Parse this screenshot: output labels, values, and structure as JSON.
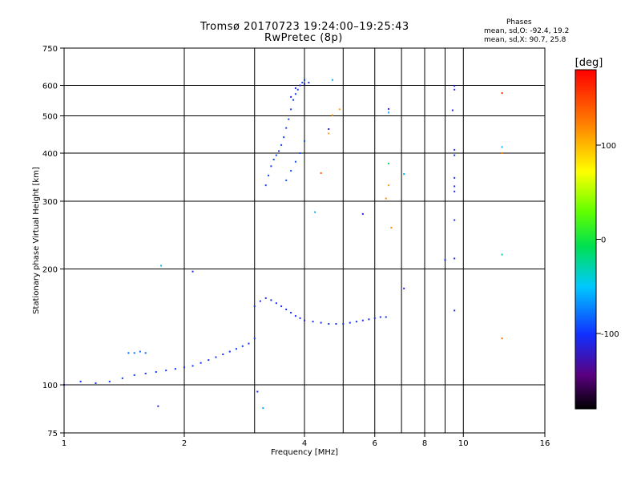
{
  "header": {
    "title_line1": "Tromsø 20170723 19:24:00–19:25:43",
    "title_line2": "RwPretec (8p)",
    "phases_label": "Phases",
    "phase_o": "mean, sd,O: -92.4, 19.2",
    "phase_x": "mean, sd,X:  90.7, 25.8"
  },
  "colorbar": {
    "label": "[deg]",
    "ticks": [
      {
        "value": 100,
        "label": "100"
      },
      {
        "value": 0,
        "label": "0"
      },
      {
        "value": -100,
        "label": "-100"
      }
    ],
    "range": [
      -180,
      180
    ]
  },
  "chart_data": {
    "type": "scatter",
    "title": "Tromsø 20170723 19:24:00–19:25:43",
    "subtitle": "RwPretec (8p)",
    "xlabel": "Frequency [MHz]",
    "ylabel": "Stationary phase Virtual Height [km]",
    "x_scale": "log",
    "y_scale": "log",
    "xlim": [
      1,
      16
    ],
    "ylim": [
      75,
      750
    ],
    "x_ticks": [
      {
        "value": 1,
        "label": "1"
      },
      {
        "value": 2,
        "label": "2"
      },
      {
        "value": 4,
        "label": "4"
      },
      {
        "value": 6,
        "label": "6"
      },
      {
        "value": 8,
        "label": "8"
      },
      {
        "value": 10,
        "label": "10"
      },
      {
        "value": 16,
        "label": "16"
      }
    ],
    "x_gridlines": [
      2,
      3,
      4,
      5,
      6,
      7,
      8,
      9,
      10
    ],
    "y_ticks": [
      {
        "value": 75,
        "label": "75"
      },
      {
        "value": 100,
        "label": "100"
      },
      {
        "value": 200,
        "label": "200"
      },
      {
        "value": 300,
        "label": "300"
      },
      {
        "value": 400,
        "label": "400"
      },
      {
        "value": 500,
        "label": "500"
      },
      {
        "value": 600,
        "label": "600"
      },
      {
        "value": 750,
        "label": "750"
      }
    ],
    "y_gridlines": [
      100,
      200,
      300,
      400,
      500,
      600
    ],
    "color_scale": "phase in degrees",
    "traces": [
      {
        "x": [
          1.0,
          1.1,
          1.2,
          1.3,
          1.4,
          1.5,
          1.6,
          1.7,
          1.8,
          1.9,
          2.0,
          2.1,
          2.2,
          2.3,
          2.4,
          2.5,
          2.6,
          2.7,
          2.8,
          2.9,
          3.0
        ],
        "y": [
          100,
          102,
          101,
          102,
          104,
          106,
          107,
          108,
          109,
          110,
          111,
          112,
          114,
          116,
          118,
          120,
          122,
          124,
          126,
          128,
          132
        ],
        "phase": -100
      },
      {
        "x": [
          1.45,
          1.5,
          1.55,
          1.6
        ],
        "y": [
          121,
          121,
          122,
          121
        ],
        "phase": -80
      },
      {
        "x": [
          3.0,
          3.1,
          3.2,
          3.3,
          3.4,
          3.5,
          3.6,
          3.7,
          3.8,
          3.9,
          4.0,
          4.2,
          4.4,
          4.6,
          4.8,
          5.0,
          5.2,
          5.4,
          5.6,
          5.8,
          6.0,
          6.2,
          6.4
        ],
        "y": [
          160,
          165,
          168,
          166,
          163,
          160,
          157,
          154,
          151,
          149,
          147,
          146,
          145,
          144,
          144,
          144,
          145,
          146,
          147,
          148,
          149,
          150,
          150
        ],
        "phase": -105
      },
      {
        "x": [
          3.2,
          3.25,
          3.3,
          3.35,
          3.4,
          3.45,
          3.5,
          3.55,
          3.6,
          3.65,
          3.7,
          3.75,
          3.8,
          3.85,
          3.9,
          3.95,
          4.0
        ],
        "y": [
          330,
          350,
          370,
          385,
          395,
          405,
          420,
          440,
          465,
          490,
          520,
          550,
          570,
          585,
          600,
          610,
          620
        ],
        "phase": -95
      },
      {
        "x": [
          3.6,
          3.7,
          3.8,
          3.9,
          4.0
        ],
        "y": [
          340,
          360,
          380,
          400,
          430
        ],
        "phase": -90
      },
      {
        "x": [
          3.7,
          3.8,
          3.9,
          4.0,
          4.1
        ],
        "y": [
          560,
          590,
          600,
          605,
          610
        ],
        "phase": -110
      }
    ],
    "scatter_points": [
      {
        "x": 1.75,
        "y": 204,
        "phase": -60
      },
      {
        "x": 2.1,
        "y": 197,
        "phase": -110
      },
      {
        "x": 1.72,
        "y": 88,
        "phase": -110
      },
      {
        "x": 3.05,
        "y": 96,
        "phase": -110
      },
      {
        "x": 3.15,
        "y": 87,
        "phase": -60
      },
      {
        "x": 4.25,
        "y": 281,
        "phase": -60
      },
      {
        "x": 4.4,
        "y": 355,
        "phase": 140
      },
      {
        "x": 4.7,
        "y": 620,
        "phase": -60
      },
      {
        "x": 4.6,
        "y": 462,
        "phase": -120
      },
      {
        "x": 4.6,
        "y": 450,
        "phase": 110
      },
      {
        "x": 4.9,
        "y": 520,
        "phase": 110
      },
      {
        "x": 4.7,
        "y": 502,
        "phase": 110
      },
      {
        "x": 5.6,
        "y": 278,
        "phase": -110
      },
      {
        "x": 6.5,
        "y": 521,
        "phase": -110
      },
      {
        "x": 6.5,
        "y": 510,
        "phase": -60
      },
      {
        "x": 6.5,
        "y": 376,
        "phase": -10
      },
      {
        "x": 6.5,
        "y": 330,
        "phase": 110
      },
      {
        "x": 6.4,
        "y": 305,
        "phase": 120
      },
      {
        "x": 6.6,
        "y": 256,
        "phase": 120
      },
      {
        "x": 7.1,
        "y": 353,
        "phase": -60
      },
      {
        "x": 7.1,
        "y": 178,
        "phase": -110
      },
      {
        "x": 9.0,
        "y": 211,
        "phase": -110
      },
      {
        "x": 9.5,
        "y": 598,
        "phase": -110
      },
      {
        "x": 9.5,
        "y": 585,
        "phase": -110
      },
      {
        "x": 9.4,
        "y": 517,
        "phase": -110
      },
      {
        "x": 9.5,
        "y": 408,
        "phase": -110
      },
      {
        "x": 9.5,
        "y": 395,
        "phase": -110
      },
      {
        "x": 9.5,
        "y": 345,
        "phase": -110
      },
      {
        "x": 9.5,
        "y": 328,
        "phase": -110
      },
      {
        "x": 9.5,
        "y": 318,
        "phase": -110
      },
      {
        "x": 9.5,
        "y": 268,
        "phase": -110
      },
      {
        "x": 9.5,
        "y": 213,
        "phase": -110
      },
      {
        "x": 9.5,
        "y": 156,
        "phase": -110
      },
      {
        "x": 12.5,
        "y": 573,
        "phase": 160
      },
      {
        "x": 12.5,
        "y": 415,
        "phase": -60
      },
      {
        "x": 12.5,
        "y": 400,
        "phase": 120
      },
      {
        "x": 12.5,
        "y": 218,
        "phase": -30
      },
      {
        "x": 12.5,
        "y": 132,
        "phase": 130
      }
    ]
  }
}
